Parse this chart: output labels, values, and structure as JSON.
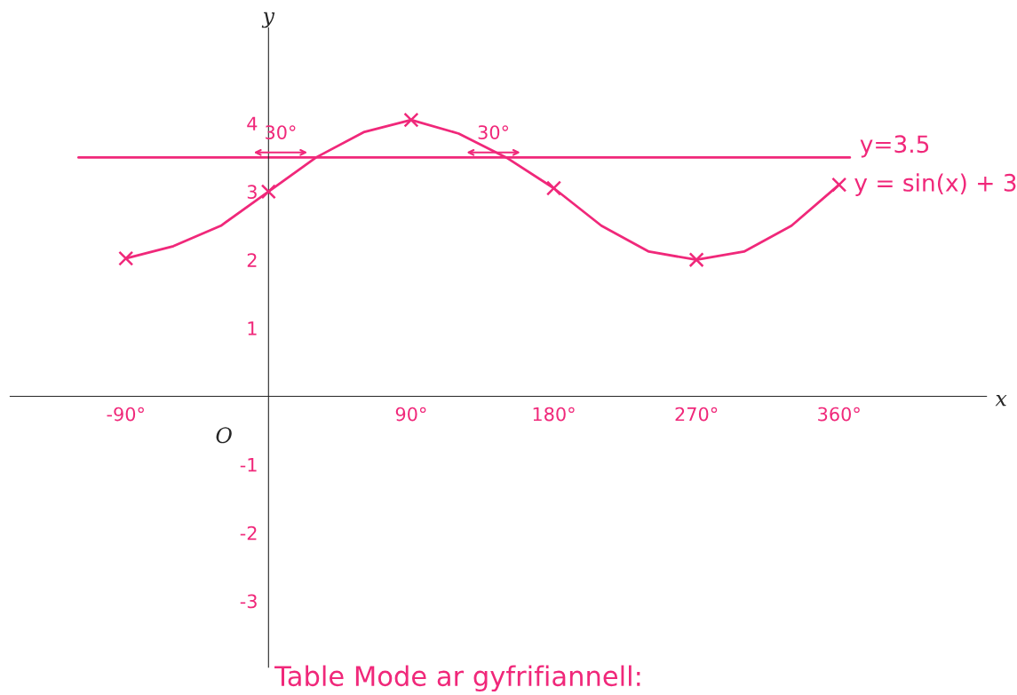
{
  "chart_data": {
    "type": "line",
    "xlabel": "x",
    "ylabel": "y",
    "xlim": [
      -163,
      453
    ],
    "ylim": [
      -3.97,
      5.4
    ],
    "xticks": [
      {
        "value": -90,
        "label": "-90°"
      },
      {
        "value": 90,
        "label": "90°"
      },
      {
        "value": 180,
        "label": "180°"
      },
      {
        "value": 270,
        "label": "270°"
      },
      {
        "value": 360,
        "label": "360°"
      }
    ],
    "yticks": [
      -3,
      -2,
      -1,
      1,
      2,
      3,
      4
    ],
    "series": [
      {
        "name": "y = sin(x) + 3",
        "color": "#f0287a",
        "x": [
          -90,
          -60,
          -30,
          0,
          30,
          60,
          90,
          120,
          150,
          180,
          210,
          240,
          270,
          300,
          330,
          360
        ],
        "values": [
          2.02,
          2.2,
          2.5,
          3,
          3.5,
          3.87,
          4.05,
          3.85,
          3.5,
          3.05,
          2.5,
          2.12,
          2.0,
          2.12,
          2.5,
          3.1
        ]
      },
      {
        "type": "scatter",
        "marker": "cross",
        "color": "#f0287a",
        "x": [
          -90,
          0,
          90,
          180,
          270,
          360
        ],
        "values": [
          2.02,
          3,
          4.05,
          3.05,
          2.0,
          3.1
        ]
      }
    ],
    "ref_lines": [
      {
        "axis": "y",
        "value": 3.5,
        "label": "y=3.5",
        "color": "#f0287a"
      }
    ],
    "annotations": [
      "O",
      "30°",
      "30°",
      "Table Mode ar gyfrifiannell:"
    ],
    "grid": false,
    "legend": false
  }
}
